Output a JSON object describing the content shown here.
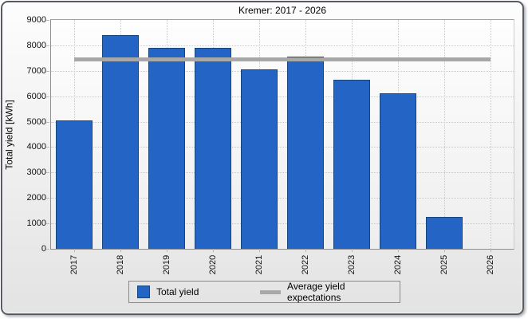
{
  "window": {
    "title": "Kremer: 2017 - 2026"
  },
  "chart_data": {
    "type": "bar",
    "title": "Kremer: 2017 - 2026",
    "xlabel": "",
    "ylabel": "Total yield [kWh]",
    "categories": [
      "2017",
      "2018",
      "2019",
      "2020",
      "2021",
      "2022",
      "2023",
      "2024",
      "2025",
      "2026"
    ],
    "series": [
      {
        "name": "Total yield",
        "type": "bar",
        "color": "#2364c4",
        "border_color": "#17457e",
        "values": [
          5050,
          8400,
          7900,
          7900,
          7050,
          7550,
          6650,
          6100,
          1250,
          0
        ]
      },
      {
        "name": "Average yield expectations",
        "type": "line",
        "color": "#a8a8a8",
        "value": 7450
      }
    ],
    "ylim": [
      0,
      9000
    ],
    "yticks": [
      0,
      1000,
      2000,
      3000,
      4000,
      5000,
      6000,
      7000,
      8000,
      9000
    ],
    "grid": "dotted",
    "legend_position": "bottom"
  },
  "legend": {
    "items": [
      {
        "label": "Total yield",
        "swatch": "square",
        "color": "#2364c4"
      },
      {
        "label": "Average yield expectations",
        "swatch": "line",
        "color": "#a8a8a8"
      }
    ]
  }
}
